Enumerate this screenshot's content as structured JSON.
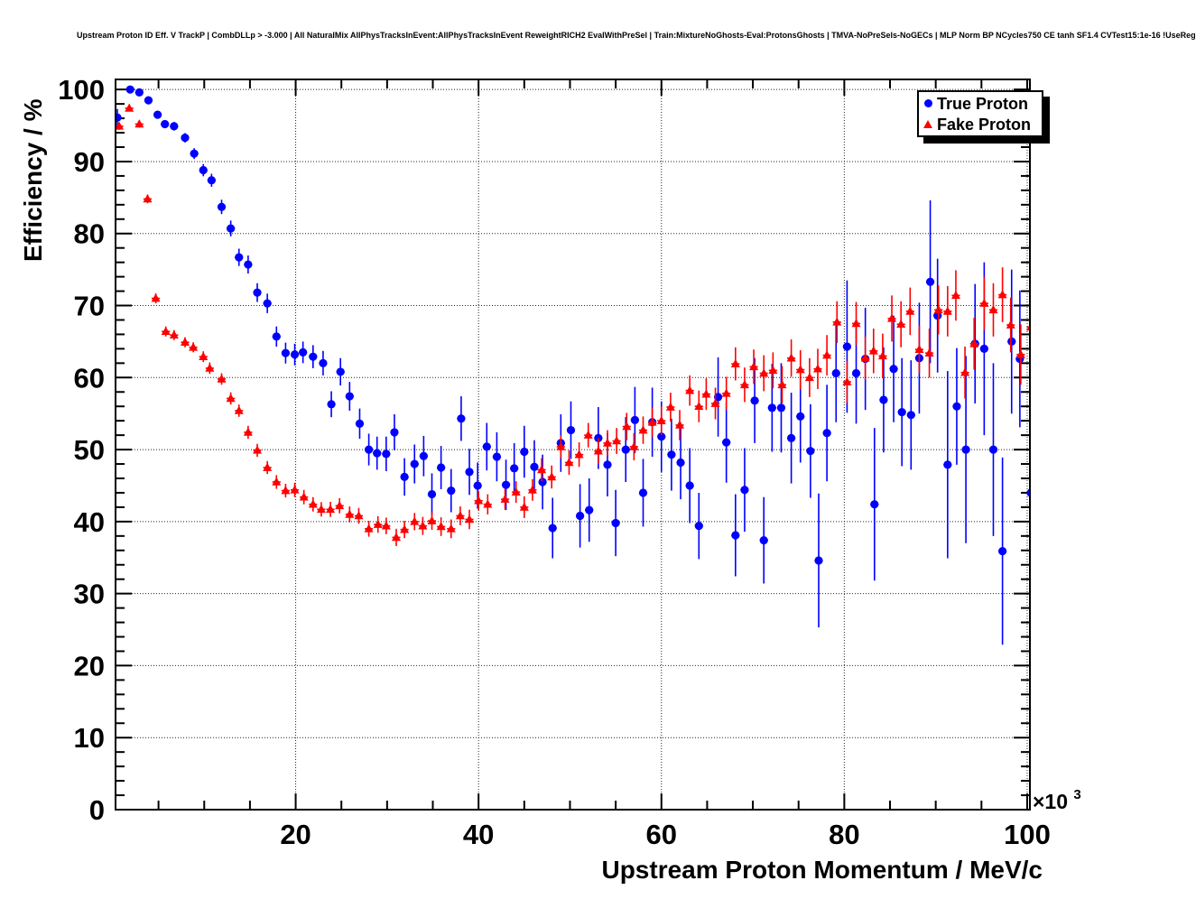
{
  "title": "Upstream Proton ID Eff. V TrackP | CombDLLp > -3.000 | All NaturalMix AllPhysTracksInEvent:AllPhysTracksInEvent ReweightRICH2 EvalWithPreSel | Train:MixtureNoGhosts-Eval:ProtonsGhosts | TMVA-NoPreSels-NoGECs | MLP Norm BP NCycles750 CE tanh SF1.4 CVTest15:1e-16 !UseReg",
  "legend": {
    "items": [
      {
        "label": "True Proton",
        "marker": "circle",
        "color": "#0000ff"
      },
      {
        "label": "Fake Proton",
        "marker": "triangle",
        "color": "#ff0000"
      }
    ]
  },
  "x_scale": {
    "base": "×10",
    "exp": "3"
  },
  "colors": {
    "true_proton": "#0000ff",
    "fake_proton": "#ff0000",
    "frame": "#000000",
    "grid": "#000000",
    "background": "#ffffff"
  },
  "chart_data": {
    "type": "scatter",
    "title": "Upstream Proton ID Eff. V TrackP",
    "xlabel": "Upstream Proton Momentum / MeV/c",
    "ylabel": "Efficiency / %",
    "x_unit_multiplier": "×10³",
    "xlim": [
      0.3,
      100.3
    ],
    "ylim": [
      0,
      101.4
    ],
    "xticks": [
      20,
      40,
      60,
      80,
      100
    ],
    "yticks": [
      0,
      10,
      20,
      30,
      40,
      50,
      60,
      70,
      80,
      90,
      100
    ],
    "x_minor_step": 5,
    "y_minor_step": 2,
    "grid": "dotted",
    "legend_position": "top-right",
    "x_bin_halfwidth": 0.45,
    "series": [
      {
        "name": "True Proton",
        "color": "#0000ff",
        "marker": "circle",
        "points_format": [
          "x_GeV",
          "efficiency_pct",
          "y_error_pct"
        ],
        "points": [
          [
            0.5,
            96.1,
            1.2
          ],
          [
            1.9,
            100,
            0.25
          ],
          [
            2.9,
            99.6,
            0.3
          ],
          [
            3.9,
            98.5,
            0.4
          ],
          [
            4.9,
            96.5,
            0.5
          ],
          [
            5.7,
            95.2,
            0.55
          ],
          [
            6.7,
            94.9,
            0.6
          ],
          [
            7.9,
            93.3,
            0.65
          ],
          [
            8.9,
            91.1,
            0.75
          ],
          [
            9.9,
            88.8,
            0.85
          ],
          [
            10.8,
            87.4,
            0.9
          ],
          [
            11.9,
            83.7,
            1.0
          ],
          [
            12.9,
            80.7,
            1.1
          ],
          [
            13.8,
            76.7,
            1.2
          ],
          [
            14.8,
            75.7,
            1.25
          ],
          [
            15.8,
            71.8,
            1.3
          ],
          [
            16.9,
            70.3,
            1.35
          ],
          [
            17.9,
            65.7,
            1.4
          ],
          [
            18.9,
            63.4,
            1.45
          ],
          [
            19.9,
            63.2,
            1.5
          ],
          [
            20.8,
            63.5,
            1.5
          ],
          [
            21.9,
            62.9,
            1.6
          ],
          [
            23,
            62,
            1.7
          ],
          [
            23.9,
            56.3,
            1.8
          ],
          [
            24.9,
            60.8,
            1.9
          ],
          [
            25.9,
            57.4,
            2.0
          ],
          [
            27,
            53.6,
            2.1
          ],
          [
            28,
            50,
            2.2
          ],
          [
            28.9,
            49.5,
            2.3
          ],
          [
            29.9,
            49.4,
            2.4
          ],
          [
            30.8,
            52.4,
            2.5
          ],
          [
            31.9,
            46.2,
            2.6
          ],
          [
            33,
            48,
            2.7
          ],
          [
            34,
            49.1,
            2.8
          ],
          [
            34.9,
            43.8,
            2.9
          ],
          [
            35.9,
            47.5,
            3.0
          ],
          [
            37,
            44.3,
            3.0
          ],
          [
            38.1,
            54.3,
            3.1
          ],
          [
            39,
            46.9,
            3.2
          ],
          [
            39.9,
            45,
            3.2
          ],
          [
            40.9,
            50.4,
            3.3
          ],
          [
            42,
            49,
            3.4
          ],
          [
            43,
            45.1,
            3.5
          ],
          [
            43.9,
            47.4,
            3.5
          ],
          [
            45,
            49.7,
            3.6
          ],
          [
            46.1,
            47.6,
            3.7
          ],
          [
            47,
            45.5,
            3.8
          ],
          [
            48.1,
            39.1,
            4.2
          ],
          [
            49,
            50.9,
            4.0
          ],
          [
            50.1,
            52.7,
            4.0
          ],
          [
            51.1,
            40.8,
            4.4
          ],
          [
            52.1,
            41.6,
            4.4
          ],
          [
            53.1,
            51.6,
            4.3
          ],
          [
            54.1,
            47.9,
            4.4
          ],
          [
            55,
            39.8,
            4.6
          ],
          [
            56.1,
            50,
            4.5
          ],
          [
            57.1,
            54.1,
            4.6
          ],
          [
            58,
            44,
            4.7
          ],
          [
            59,
            53.8,
            4.8
          ],
          [
            60,
            51.8,
            4.9
          ],
          [
            61.1,
            49.3,
            5.0
          ],
          [
            62.1,
            48.2,
            5.1
          ],
          [
            63.1,
            45,
            5.2
          ],
          [
            64.1,
            39.4,
            4.6
          ],
          [
            66.2,
            57.3,
            5.5
          ],
          [
            67.1,
            51,
            5.6
          ],
          [
            68.1,
            38.1,
            5.7
          ],
          [
            69.1,
            44.4,
            5.8
          ],
          [
            70.2,
            56.8,
            5.9
          ],
          [
            71.2,
            37.4,
            6.0
          ],
          [
            72.1,
            55.8,
            6.1
          ],
          [
            73.1,
            55.8,
            6.2
          ],
          [
            74.2,
            51.6,
            6.3
          ],
          [
            75.2,
            54.6,
            6.4
          ],
          [
            76.3,
            49.8,
            6.5
          ],
          [
            77.2,
            34.6,
            9.3
          ],
          [
            78.1,
            52.3,
            6.7
          ],
          [
            79.1,
            60.6,
            6.8
          ],
          [
            80.3,
            64.3,
            9.2
          ],
          [
            81.3,
            60.6,
            7.0
          ],
          [
            82.3,
            62.6,
            7.1
          ],
          [
            83.3,
            42.4,
            10.6
          ],
          [
            84.3,
            56.9,
            7.3
          ],
          [
            85.4,
            61.2,
            7.4
          ],
          [
            86.3,
            55.2,
            7.5
          ],
          [
            87.3,
            54.8,
            7.6
          ],
          [
            88.2,
            62.7,
            7.7
          ],
          [
            89.4,
            73.3,
            11.3
          ],
          [
            90.2,
            68.6,
            7.9
          ],
          [
            91.3,
            47.9,
            13
          ],
          [
            92.3,
            56,
            8.1
          ],
          [
            93.3,
            50,
            13
          ],
          [
            94.3,
            64.7,
            8.3
          ],
          [
            95.3,
            64,
            12
          ],
          [
            96.3,
            50,
            12
          ],
          [
            97.3,
            35.9,
            13
          ],
          [
            98.3,
            65,
            10
          ],
          [
            99.2,
            62.6,
            9.5
          ],
          [
            100.4,
            44,
            21
          ]
        ]
      },
      {
        "name": "Fake Proton",
        "color": "#ff0000",
        "marker": "triangle",
        "points_format": [
          "x_GeV",
          "efficiency_pct",
          "y_error_pct"
        ],
        "points": [
          [
            0.7,
            94.9,
            0.5
          ],
          [
            1.8,
            97.4,
            0.4
          ],
          [
            2.9,
            95.2,
            0.5
          ],
          [
            3.8,
            84.8,
            0.6
          ],
          [
            4.7,
            71.0,
            0.7
          ],
          [
            5.8,
            66.4,
            0.7
          ],
          [
            6.7,
            65.9,
            0.7
          ],
          [
            7.9,
            64.9,
            0.7
          ],
          [
            8.8,
            64.2,
            0.7
          ],
          [
            9.9,
            62.9,
            0.75
          ],
          [
            10.6,
            61.3,
            0.8
          ],
          [
            11.9,
            59.8,
            0.8
          ],
          [
            12.9,
            57.1,
            0.85
          ],
          [
            13.8,
            55.4,
            0.85
          ],
          [
            14.8,
            52.4,
            0.9
          ],
          [
            15.8,
            49.9,
            0.9
          ],
          [
            16.9,
            47.5,
            0.9
          ],
          [
            17.9,
            45.5,
            0.95
          ],
          [
            18.9,
            44.3,
            0.95
          ],
          [
            19.9,
            44.4,
            1.0
          ],
          [
            20.9,
            43.4,
            1.0
          ],
          [
            21.9,
            42.4,
            1.0
          ],
          [
            22.8,
            41.7,
            1.0
          ],
          [
            23.8,
            41.7,
            1.05
          ],
          [
            24.8,
            42.2,
            1.05
          ],
          [
            25.9,
            41.0,
            1.1
          ],
          [
            26.9,
            40.8,
            1.1
          ],
          [
            28,
            39.0,
            1.1
          ],
          [
            29,
            39.6,
            1.15
          ],
          [
            29.9,
            39.4,
            1.15
          ],
          [
            31,
            37.8,
            1.2
          ],
          [
            31.9,
            38.9,
            1.2
          ],
          [
            33,
            40.0,
            1.2
          ],
          [
            33.9,
            39.4,
            1.25
          ],
          [
            34.9,
            40.1,
            1.25
          ],
          [
            35.9,
            39.3,
            1.3
          ],
          [
            37,
            39.0,
            1.3
          ],
          [
            38,
            40.8,
            1.3
          ],
          [
            39,
            40.3,
            1.35
          ],
          [
            40,
            42.9,
            1.35
          ],
          [
            41,
            42.4,
            1.4
          ],
          [
            42.9,
            43.1,
            1.45
          ],
          [
            44.1,
            44.1,
            1.5
          ],
          [
            45,
            42.0,
            1.5
          ],
          [
            45.9,
            44.4,
            1.5
          ],
          [
            46.9,
            47.2,
            1.6
          ],
          [
            48,
            46.2,
            1.6
          ],
          [
            49,
            50.4,
            1.6
          ],
          [
            49.9,
            48.2,
            1.7
          ],
          [
            51,
            49.3,
            1.7
          ],
          [
            52,
            52.0,
            1.7
          ],
          [
            53.1,
            49.8,
            1.8
          ],
          [
            54.1,
            50.9,
            1.8
          ],
          [
            55.1,
            51.2,
            1.8
          ],
          [
            56.2,
            53.2,
            1.9
          ],
          [
            57,
            50.4,
            1.9
          ],
          [
            58,
            52.7,
            1.9
          ],
          [
            59,
            53.8,
            2.0
          ],
          [
            60,
            54.0,
            2.0
          ],
          [
            61,
            55.9,
            2.0
          ],
          [
            62,
            53.4,
            2.1
          ],
          [
            63.1,
            58.2,
            2.1
          ],
          [
            64.1,
            56.0,
            2.2
          ],
          [
            64.9,
            57.7,
            2.2
          ],
          [
            65.9,
            56.4,
            2.2
          ],
          [
            67.1,
            57.8,
            2.3
          ],
          [
            68.1,
            61.9,
            2.3
          ],
          [
            69.1,
            59.0,
            2.4
          ],
          [
            70.1,
            61.5,
            2.4
          ],
          [
            71.2,
            60.6,
            2.5
          ],
          [
            72.2,
            61.0,
            2.5
          ],
          [
            73.2,
            59.0,
            2.6
          ],
          [
            74.2,
            62.7,
            2.6
          ],
          [
            75.2,
            61.1,
            2.7
          ],
          [
            76.2,
            60.0,
            2.7
          ],
          [
            77.1,
            61.2,
            2.8
          ],
          [
            78.1,
            63.1,
            2.8
          ],
          [
            79.2,
            67.7,
            2.9
          ],
          [
            80.3,
            59.4,
            2.9
          ],
          [
            81.3,
            67.5,
            3.0
          ],
          [
            82.3,
            62.7,
            3.0
          ],
          [
            83.2,
            63.7,
            3.1
          ],
          [
            84.2,
            63.0,
            3.1
          ],
          [
            85.2,
            68.2,
            3.2
          ],
          [
            86.2,
            67.4,
            3.2
          ],
          [
            87.2,
            69.2,
            3.3
          ],
          [
            88.2,
            63.9,
            3.3
          ],
          [
            89.3,
            63.4,
            3.4
          ],
          [
            90.3,
            69.4,
            3.4
          ],
          [
            91.3,
            69.2,
            3.5
          ],
          [
            92.2,
            71.4,
            3.5
          ],
          [
            93.2,
            60.7,
            3.6
          ],
          [
            94.2,
            64.7,
            3.6
          ],
          [
            95.3,
            70.3,
            3.7
          ],
          [
            96.3,
            69.4,
            3.7
          ],
          [
            97.3,
            71.5,
            3.8
          ],
          [
            98.2,
            67.3,
            3.8
          ],
          [
            99.3,
            63.2,
            4.2
          ],
          [
            100.4,
            67.0,
            7.0
          ]
        ]
      }
    ]
  }
}
